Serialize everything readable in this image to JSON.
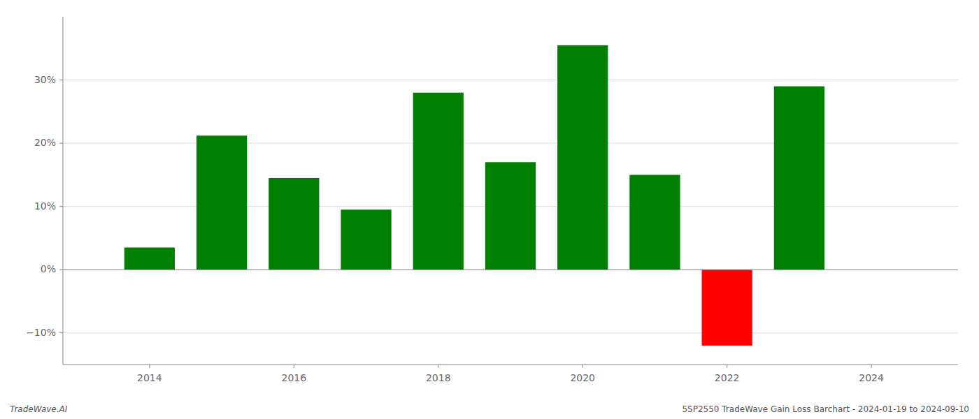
{
  "chart_data": {
    "type": "bar",
    "x": [
      2014,
      2015,
      2016,
      2017,
      2018,
      2019,
      2020,
      2021,
      2022,
      2023
    ],
    "values": [
      3.5,
      21.2,
      14.5,
      9.5,
      28.0,
      17.0,
      35.5,
      15.0,
      -12.0,
      29.0
    ],
    "colors": [
      "#008000",
      "#008000",
      "#008000",
      "#008000",
      "#008000",
      "#008000",
      "#008000",
      "#008000",
      "#ff0000",
      "#008000"
    ],
    "ylim": [
      -15,
      40
    ],
    "yticks": [
      {
        "value": -10,
        "label": "−10%"
      },
      {
        "value": 0,
        "label": "0%"
      },
      {
        "value": 10,
        "label": "10%"
      },
      {
        "value": 20,
        "label": "20%"
      },
      {
        "value": 30,
        "label": "30%"
      }
    ],
    "xlim": [
      2012.8,
      2025.2
    ],
    "xticks": [
      2014,
      2016,
      2018,
      2020,
      2022,
      2024
    ],
    "grid": true,
    "annotations": [
      "TradeWave.AI",
      "5SP2550 TradeWave Gain Loss Barchart - 2024-01-19 to 2024-09-10"
    ]
  }
}
